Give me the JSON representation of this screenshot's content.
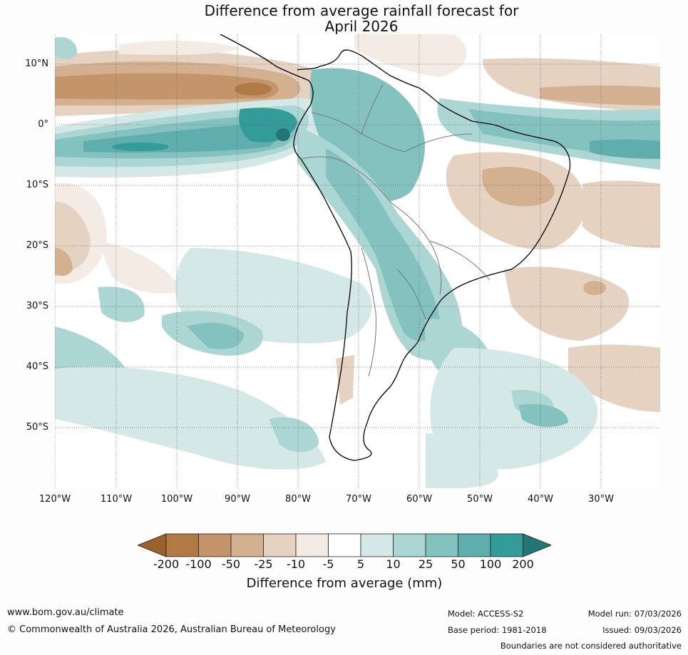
{
  "title": {
    "line1": "Difference from average rainfall forecast for",
    "line2": "April 2026"
  },
  "map": {
    "lat_labels": [
      "10°N",
      "0°",
      "10°S",
      "20°S",
      "30°S",
      "40°S",
      "50°S"
    ],
    "lon_labels": [
      "120°W",
      "110°W",
      "100°W",
      "90°W",
      "80°W",
      "70°W",
      "60°W",
      "50°W",
      "40°W",
      "30°W"
    ]
  },
  "legend": {
    "ticks": [
      "-200",
      "-100",
      "-50",
      "-25",
      "-10",
      "-5",
      "5",
      "10",
      "25",
      "50",
      "100",
      "200"
    ],
    "colors": [
      "#9c5f2e",
      "#b07a45",
      "#c4956a",
      "#d3b08f",
      "#e6d2c1",
      "#f5ebe5",
      "#ffffff",
      "#d4e9e7",
      "#acd6d4",
      "#84c2c0",
      "#5fadac",
      "#339b98",
      "#237676"
    ],
    "label": "Difference from average (mm)"
  },
  "footer": {
    "website": "www.bom.gov.au/climate",
    "copyright": "© Commonwealth of Australia 2026, Australian Bureau of Meteorology",
    "model": "Model: ACCESS-S2",
    "model_run": "Model run: 07/03/2026",
    "base_period": "Base period: 1981-2018",
    "issued": "Issued: 09/03/2026",
    "disclaimer": "Boundaries are not considered authoritative"
  }
}
